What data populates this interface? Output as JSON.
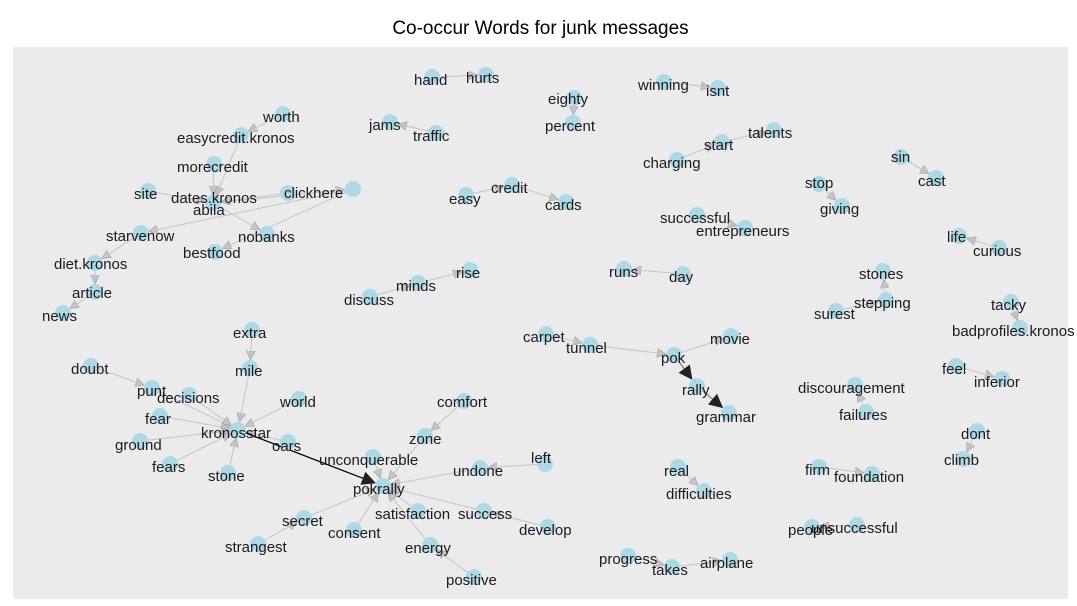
{
  "title": "Co-occur Words for junk messages",
  "colors": {
    "panel": "#ebebeb",
    "node": "#add8e6",
    "edge": "#c4c4c4",
    "edge_strong": "#000000",
    "text": "#1a1a1a"
  },
  "nodes": [
    {
      "id": "hand",
      "label": "hand"
    },
    {
      "id": "hurts",
      "label": "hurts"
    },
    {
      "id": "eighty",
      "label": "eighty"
    },
    {
      "id": "percent",
      "label": "percent"
    },
    {
      "id": "winning",
      "label": "winning"
    },
    {
      "id": "isnt",
      "label": "isnt"
    },
    {
      "id": "jams",
      "label": "jams"
    },
    {
      "id": "traffic",
      "label": "traffic"
    },
    {
      "id": "talents",
      "label": "talents"
    },
    {
      "id": "start",
      "label": "start"
    },
    {
      "id": "charging",
      "label": "charging"
    },
    {
      "id": "sin",
      "label": "sin"
    },
    {
      "id": "cast",
      "label": "cast"
    },
    {
      "id": "stop",
      "label": "stop"
    },
    {
      "id": "giving",
      "label": "giving"
    },
    {
      "id": "worth",
      "label": "worth"
    },
    {
      "id": "easycredit.kronos",
      "label": "easycredit.kronos"
    },
    {
      "id": "morecredit",
      "label": "morecredit"
    },
    {
      "id": "site",
      "label": "site"
    },
    {
      "id": "dates.kronos",
      "label": "dates.kronos"
    },
    {
      "id": "clickhere",
      "label": "clickhere"
    },
    {
      "id": "abila",
      "label": "abila"
    },
    {
      "id": "nobanks",
      "label": "nobanks"
    },
    {
      "id": "bestfood",
      "label": "bestfood"
    },
    {
      "id": "starvenow",
      "label": "starvenow"
    },
    {
      "id": "diet.kronos",
      "label": "diet.kronos"
    },
    {
      "id": "article",
      "label": "article"
    },
    {
      "id": "news",
      "label": "news"
    },
    {
      "id": "easy",
      "label": "easy"
    },
    {
      "id": "credit",
      "label": "credit"
    },
    {
      "id": "cards",
      "label": "cards"
    },
    {
      "id": "successful_1",
      "label": "successful"
    },
    {
      "id": "entrepreneurs",
      "label": "entrepreneurs"
    },
    {
      "id": "life",
      "label": "life"
    },
    {
      "id": "curious",
      "label": "curious"
    },
    {
      "id": "rise",
      "label": "rise"
    },
    {
      "id": "minds",
      "label": "minds"
    },
    {
      "id": "discuss",
      "label": "discuss"
    },
    {
      "id": "runs",
      "label": "runs"
    },
    {
      "id": "day",
      "label": "day"
    },
    {
      "id": "stones",
      "label": "stones"
    },
    {
      "id": "stepping",
      "label": "stepping"
    },
    {
      "id": "surest",
      "label": "surest"
    },
    {
      "id": "tacky",
      "label": "tacky"
    },
    {
      "id": "badprofiles.kronos",
      "label": "badprofiles.kronos"
    },
    {
      "id": "carpet",
      "label": "carpet"
    },
    {
      "id": "tunnel",
      "label": "tunnel"
    },
    {
      "id": "pok",
      "label": "pok"
    },
    {
      "id": "movie",
      "label": "movie"
    },
    {
      "id": "rally",
      "label": "rally"
    },
    {
      "id": "grammar",
      "label": "grammar"
    },
    {
      "id": "extra",
      "label": "extra"
    },
    {
      "id": "mile",
      "label": "mile"
    },
    {
      "id": "doubt",
      "label": "doubt"
    },
    {
      "id": "punt",
      "label": "punt"
    },
    {
      "id": "decisions",
      "label": "decisions"
    },
    {
      "id": "world",
      "label": "world"
    },
    {
      "id": "fear",
      "label": "fear"
    },
    {
      "id": "kronosstar",
      "label": "kronosstar"
    },
    {
      "id": "ground",
      "label": "ground"
    },
    {
      "id": "oars",
      "label": "oars"
    },
    {
      "id": "fears",
      "label": "fears"
    },
    {
      "id": "stone",
      "label": "stone"
    },
    {
      "id": "feel",
      "label": "feel"
    },
    {
      "id": "inferior",
      "label": "inferior"
    },
    {
      "id": "discouragement",
      "label": "discouragement"
    },
    {
      "id": "failures",
      "label": "failures"
    },
    {
      "id": "comfort",
      "label": "comfort"
    },
    {
      "id": "zone",
      "label": "zone"
    },
    {
      "id": "dont",
      "label": "dont"
    },
    {
      "id": "climb",
      "label": "climb"
    },
    {
      "id": "unconquerable",
      "label": "unconquerable"
    },
    {
      "id": "left",
      "label": "left"
    },
    {
      "id": "undone",
      "label": "undone"
    },
    {
      "id": "pokrally",
      "label": "pokrally"
    },
    {
      "id": "real",
      "label": "real"
    },
    {
      "id": "difficulties",
      "label": "difficulties"
    },
    {
      "id": "firm",
      "label": "firm"
    },
    {
      "id": "foundation",
      "label": "foundation"
    },
    {
      "id": "satisfaction",
      "label": "satisfaction"
    },
    {
      "id": "success",
      "label": "success"
    },
    {
      "id": "develop",
      "label": "develop"
    },
    {
      "id": "secret",
      "label": "secret"
    },
    {
      "id": "consent",
      "label": "consent"
    },
    {
      "id": "unsuccessful",
      "label": "unsuccessful"
    },
    {
      "id": "people",
      "label": "people"
    },
    {
      "id": "strangest",
      "label": "strangest"
    },
    {
      "id": "energy",
      "label": "energy"
    },
    {
      "id": "progress",
      "label": "progress"
    },
    {
      "id": "takes",
      "label": "takes"
    },
    {
      "id": "airplane",
      "label": "airplane"
    },
    {
      "id": "positive",
      "label": "positive"
    }
  ],
  "edges": [
    {
      "from": "hand",
      "to": "hurts"
    },
    {
      "from": "eighty",
      "to": "percent"
    },
    {
      "from": "winning",
      "to": "isnt"
    },
    {
      "from": "traffic",
      "to": "jams"
    },
    {
      "from": "charging",
      "to": "start"
    },
    {
      "from": "start",
      "to": "talents"
    },
    {
      "from": "sin",
      "to": "cast"
    },
    {
      "from": "stop",
      "to": "giving"
    },
    {
      "from": "worth",
      "to": "easycredit.kronos"
    },
    {
      "from": "easycredit.kronos",
      "to": "dates.kronos"
    },
    {
      "from": "morecredit",
      "to": "dates.kronos"
    },
    {
      "from": "site",
      "to": "dates.kronos"
    },
    {
      "from": "clickhere",
      "to": "dates.kronos"
    },
    {
      "from": "dates.kronos",
      "to": "nobanks"
    },
    {
      "from": "dates.kronos",
      "to": "abila"
    },
    {
      "from": "abila",
      "to": "bestfood"
    },
    {
      "from": "abila",
      "to": "starvenow"
    },
    {
      "from": "starvenow",
      "to": "diet.kronos"
    },
    {
      "from": "diet.kronos",
      "to": "article"
    },
    {
      "from": "article",
      "to": "news"
    },
    {
      "from": "easy",
      "to": "credit"
    },
    {
      "from": "credit",
      "to": "cards"
    },
    {
      "from": "successful_1",
      "to": "entrepreneurs"
    },
    {
      "from": "curious",
      "to": "life"
    },
    {
      "from": "discuss",
      "to": "minds"
    },
    {
      "from": "minds",
      "to": "rise"
    },
    {
      "from": "day",
      "to": "runs"
    },
    {
      "from": "surest",
      "to": "stepping"
    },
    {
      "from": "stepping",
      "to": "stones"
    },
    {
      "from": "tacky",
      "to": "badprofiles.kronos"
    },
    {
      "from": "carpet",
      "to": "tunnel"
    },
    {
      "from": "tunnel",
      "to": "pok"
    },
    {
      "from": "pok",
      "to": "movie"
    },
    {
      "from": "pok",
      "to": "rally",
      "strong": true
    },
    {
      "from": "rally",
      "to": "grammar",
      "strong": true
    },
    {
      "from": "extra",
      "to": "mile"
    },
    {
      "from": "doubt",
      "to": "punt"
    },
    {
      "from": "mile",
      "to": "kronosstar"
    },
    {
      "from": "punt",
      "to": "kronosstar"
    },
    {
      "from": "decisions",
      "to": "kronosstar"
    },
    {
      "from": "world",
      "to": "kronosstar"
    },
    {
      "from": "fear",
      "to": "kronosstar"
    },
    {
      "from": "ground",
      "to": "kronosstar"
    },
    {
      "from": "oars",
      "to": "kronosstar"
    },
    {
      "from": "fears",
      "to": "kronosstar"
    },
    {
      "from": "stone",
      "to": "kronosstar"
    },
    {
      "from": "kronosstar",
      "to": "pokrally",
      "strong": true
    },
    {
      "from": "feel",
      "to": "inferior"
    },
    {
      "from": "failures",
      "to": "discouragement"
    },
    {
      "from": "comfort",
      "to": "zone"
    },
    {
      "from": "zone",
      "to": "pokrally"
    },
    {
      "from": "dont",
      "to": "climb"
    },
    {
      "from": "unconquerable",
      "to": "pokrally"
    },
    {
      "from": "left",
      "to": "undone"
    },
    {
      "from": "undone",
      "to": "pokrally"
    },
    {
      "from": "real",
      "to": "difficulties"
    },
    {
      "from": "firm",
      "to": "foundation"
    },
    {
      "from": "satisfaction",
      "to": "pokrally"
    },
    {
      "from": "success",
      "to": "pokrally"
    },
    {
      "from": "develop",
      "to": "success"
    },
    {
      "from": "secret",
      "to": "pokrally"
    },
    {
      "from": "consent",
      "to": "pokrally"
    },
    {
      "from": "strangest",
      "to": "secret"
    },
    {
      "from": "energy",
      "to": "pokrally"
    },
    {
      "from": "positive",
      "to": "energy"
    },
    {
      "from": "unsuccessful",
      "to": "people"
    },
    {
      "from": "progress",
      "to": "takes"
    },
    {
      "from": "takes",
      "to": "airplane"
    }
  ]
}
